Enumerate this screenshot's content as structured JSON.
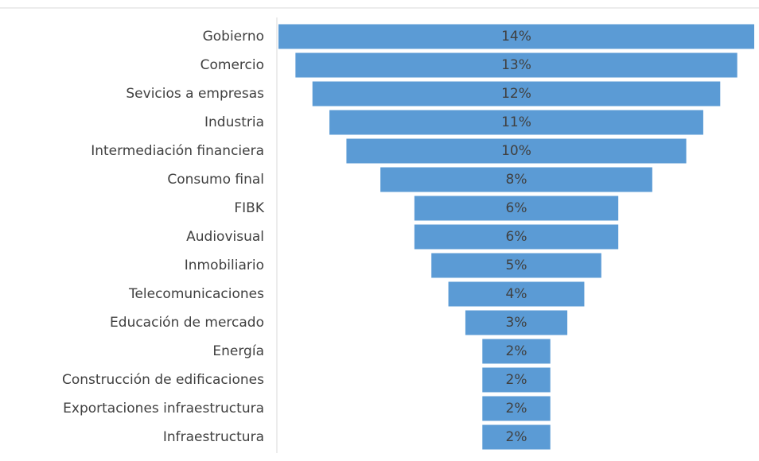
{
  "chart_data": {
    "type": "funnel",
    "categories": [
      "Gobierno",
      "Comercio",
      "Sevicios a empresas",
      "Industria",
      "Intermediación financiera",
      "Consumo final",
      "FIBK",
      "Audiovisual",
      "Inmobiliario",
      "Telecomunicaciones",
      "Educación de mercado",
      "Energía",
      "Construcción de edificaciones",
      "Exportaciones infraestructura",
      "Infraestructura"
    ],
    "values": [
      14,
      13,
      12,
      11,
      10,
      8,
      6,
      6,
      5,
      4,
      3,
      2,
      2,
      2,
      2
    ],
    "value_labels": [
      "14%",
      "13%",
      "12%",
      "11%",
      "10%",
      "8%",
      "6%",
      "6%",
      "5%",
      "4%",
      "3%",
      "2%",
      "2%",
      "2%",
      "2%"
    ],
    "color": "#5b9bd5"
  }
}
